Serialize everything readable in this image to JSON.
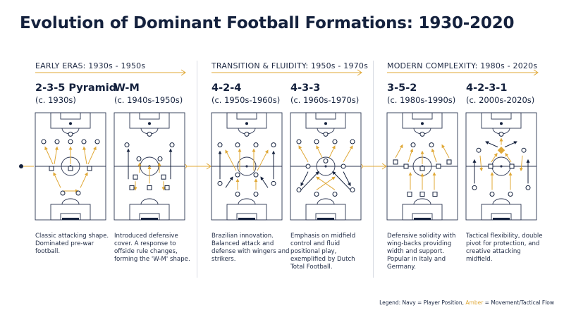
{
  "title": "Evolution of Dominant Football Formations: 1930-2020",
  "colors": {
    "navy": "#14213d",
    "amber": "#e0a836",
    "line": "#2b3552",
    "divider": "#d9dce3"
  },
  "eras": [
    {
      "label": "EARLY ERAS: 1930s - 1950s",
      "formations": [
        {
          "name": "2-3-5 Pyramid",
          "period": "(c. 1930s)",
          "description": "Classic attacking shape. Dominated pre-war football."
        },
        {
          "name": "W-M",
          "period": "(c. 1940s-1950s)",
          "description": "Introduced defensive cover. A response to offside rule changes, forming the 'W-M' shape."
        }
      ]
    },
    {
      "label": "TRANSITION & FLUIDITY: 1950s - 1970s",
      "formations": [
        {
          "name": "4-2-4",
          "period": "(c. 1950s-1960s)",
          "description": "Brazilian innovation. Balanced attack and defense with wingers and strikers."
        },
        {
          "name": "4-3-3",
          "period": "(c. 1960s-1970s)",
          "description": "Emphasis on midfield control and fluid positional play, exemplified by Dutch Total Football."
        }
      ]
    },
    {
      "label": "MODERN COMPLEXITY: 1980s - 2020s",
      "formations": [
        {
          "name": "3-5-2",
          "period": "(c. 1980s-1990s)",
          "description": "Defensive solidity with wing-backs providing width and support. Popular in Italy and Germany."
        },
        {
          "name": "4-2-3-1",
          "period": "(c. 2000s-2020s)",
          "description": "Tactical flexibility, double pivot for protection, and creative attacking midfield."
        }
      ]
    }
  ],
  "legend": {
    "prefix": "Legend: Navy = Player Position, ",
    "amber_word": "Amber",
    "suffix": " = Movement/Tactical Flow"
  }
}
